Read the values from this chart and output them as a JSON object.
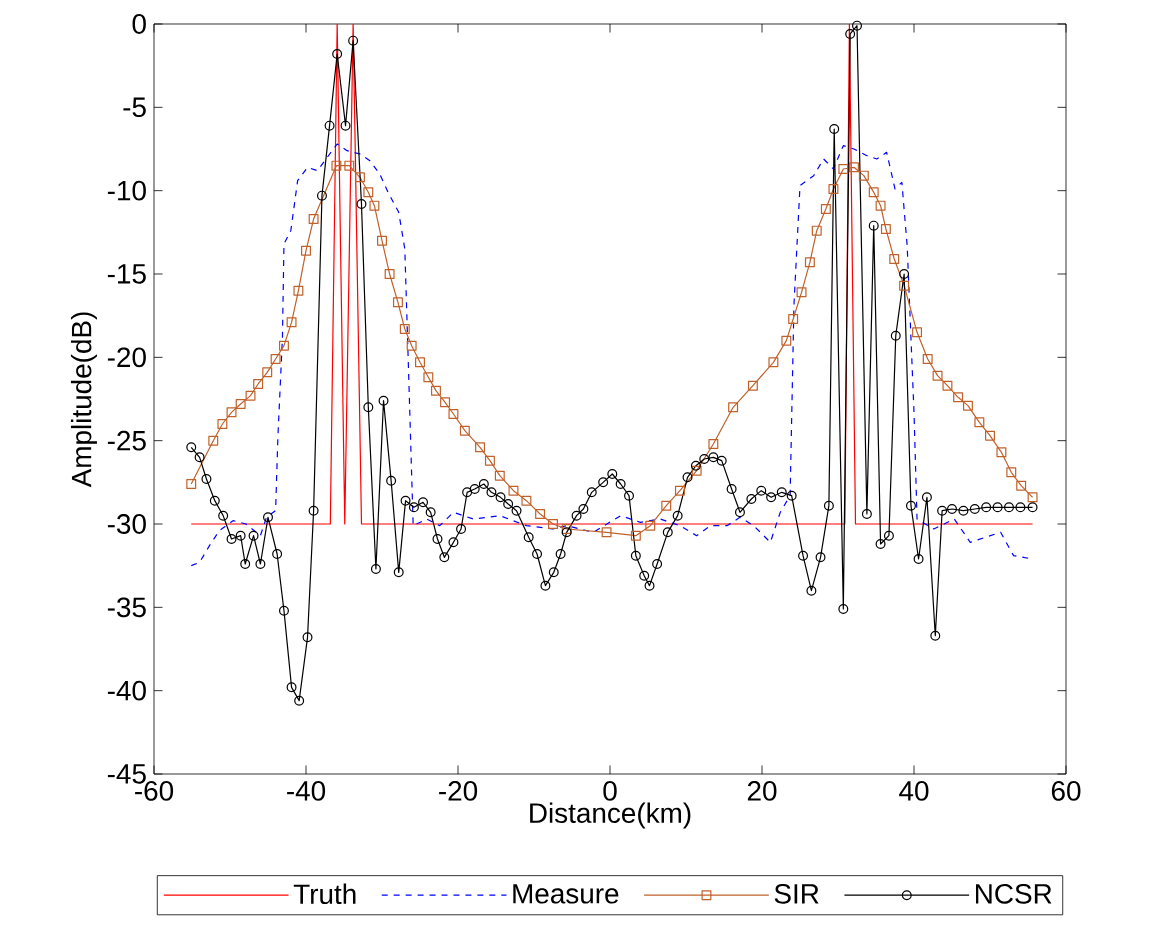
{
  "chart_data": {
    "type": "line",
    "xlabel": "Distance(km)",
    "ylabel": "Amplitude(dB)",
    "xlim": [
      -60,
      60
    ],
    "ylim": [
      -45,
      0
    ],
    "xticks": [
      -60,
      -40,
      -20,
      0,
      20,
      40,
      60
    ],
    "yticks": [
      -45,
      -40,
      -35,
      -30,
      -25,
      -20,
      -15,
      -10,
      -5,
      0
    ],
    "grid": false,
    "legend": "bottom",
    "series": [
      {
        "name": "Truth",
        "color": "#ff0000",
        "marker": "none",
        "line_style": "solid",
        "x": [
          -55.1,
          -36.8,
          -35.9,
          -34.9,
          -33.8,
          -32.7,
          30.9,
          31.5,
          32.3,
          55.6
        ],
        "values": [
          -30,
          -30,
          0,
          -30,
          0,
          -30,
          -30,
          0,
          -30,
          -30
        ]
      },
      {
        "name": "Measure",
        "color": "#0000ff",
        "marker": "none",
        "line_style": "dashed",
        "x": [
          -55.1,
          -54,
          -52.7,
          -51.4,
          -49.6,
          -47.9,
          -46,
          -45.2,
          -44,
          -43.7,
          -43.1,
          -42.9,
          -42,
          -41.1,
          -39.8,
          -38.5,
          -37.2,
          -35.9,
          -34.6,
          -32.9,
          -31.6,
          -30.3,
          -29.2,
          -27.8,
          -27,
          -26.5,
          -25.9,
          -24.1,
          -22.4,
          -20.6,
          -18,
          -14.5,
          -11,
          -7.5,
          -5.7,
          -2.2,
          1.4,
          4,
          6.6,
          9.2,
          11.4,
          13.2,
          15.4,
          17.1,
          18.9,
          21.1,
          22.4,
          23.7,
          24.2,
          25,
          26.8,
          28.1,
          29.4,
          30.7,
          32.1,
          33.8,
          35.1,
          36.4,
          37.5,
          38.4,
          39.1,
          40,
          40.4,
          42.6,
          45.3,
          47.4,
          51.4,
          53.1,
          55.6
        ],
        "values": [
          -32.5,
          -32.3,
          -31.3,
          -30.4,
          -29.8,
          -30,
          -30.7,
          -29.6,
          -29.2,
          -24.8,
          -18.8,
          -13.2,
          -12.4,
          -9.4,
          -8.6,
          -8.8,
          -8,
          -7.2,
          -7.6,
          -7.8,
          -8.2,
          -9,
          -10.1,
          -11.3,
          -13.5,
          -20.9,
          -30.1,
          -29.7,
          -30.1,
          -29.3,
          -29.7,
          -29.5,
          -30.1,
          -30.3,
          -30.1,
          -30.5,
          -29.5,
          -29.9,
          -29.7,
          -30.1,
          -30.7,
          -30.1,
          -30.1,
          -29.6,
          -30.1,
          -31.1,
          -29.3,
          -28.3,
          -16.9,
          -9.7,
          -9.1,
          -8.1,
          -8.7,
          -7.3,
          -7.5,
          -7.9,
          -8.1,
          -7.7,
          -9.9,
          -9.5,
          -13.3,
          -23.3,
          -29.7,
          -30.3,
          -29.7,
          -31.1,
          -30.5,
          -31.9,
          -32.1
        ]
      },
      {
        "name": "SIR",
        "color": "#c0612b",
        "marker": "square",
        "line_style": "solid",
        "x": [
          -55.1,
          -52.2,
          -51,
          -49.8,
          -48.6,
          -47.3,
          -46.3,
          -45.1,
          -44,
          -42.9,
          -41.9,
          -41,
          -40,
          -39,
          -36,
          -34.3,
          -32.9,
          -31.8,
          -31,
          -30,
          -29,
          -27.9,
          -27,
          -26.1,
          -25,
          -23.9,
          -22.9,
          -21.7,
          -20.6,
          -19.1,
          -17.1,
          -15.8,
          -14.5,
          -12.7,
          -11,
          -9.2,
          -7.5,
          -5.7,
          -0.45,
          3.4,
          5.3,
          7.4,
          9.2,
          11.4,
          13.6,
          16.2,
          18.8,
          21.5,
          23.2,
          24.1,
          25.2,
          26.3,
          27.2,
          28.4,
          29.4,
          30.7,
          32.1,
          33.4,
          34.7,
          35.6,
          36.3,
          37.4,
          38.7,
          40.4,
          41.8,
          43.1,
          44.4,
          45.8,
          47.1,
          48.6,
          50,
          51.5,
          52.8,
          54.1,
          55.6
        ],
        "values": [
          -27.6,
          -25,
          -24,
          -23.3,
          -22.8,
          -22.3,
          -21.6,
          -20.9,
          -20.1,
          -19.3,
          -17.9,
          -16,
          -13.6,
          -11.7,
          -8.5,
          -8.5,
          -9.2,
          -10.1,
          -10.9,
          -13,
          -15,
          -16.7,
          -18.3,
          -19.3,
          -20.3,
          -21.2,
          -22,
          -22.7,
          -23.4,
          -24.4,
          -25.4,
          -26.2,
          -27.1,
          -28,
          -28.6,
          -29.4,
          -30,
          -30.3,
          -30.5,
          -30.7,
          -30.1,
          -28.9,
          -28,
          -26.8,
          -25.2,
          -23,
          -21.7,
          -20.3,
          -19,
          -17.7,
          -16.1,
          -14.3,
          -12.4,
          -11.1,
          -9.9,
          -8.7,
          -8.6,
          -9.1,
          -10.1,
          -10.9,
          -12.3,
          -14.1,
          -15.7,
          -18.5,
          -20.1,
          -21.1,
          -21.7,
          -22.4,
          -22.9,
          -23.9,
          -24.7,
          -25.7,
          -26.9,
          -27.7,
          -28.4
        ]
      },
      {
        "name": "NCSR",
        "color": "#000000",
        "marker": "circle",
        "line_style": "solid",
        "x": [
          -55.1,
          -54,
          -53.1,
          -52,
          -50.9,
          -49.8,
          -48.6,
          -48,
          -46.9,
          -46,
          -45,
          -43.8,
          -42.9,
          -41.9,
          -40.9,
          -39.8,
          -39,
          -37.9,
          -36.9,
          -35.9,
          -34.8,
          -33.8,
          -32.7,
          -31.8,
          -30.8,
          -29.8,
          -28.8,
          -27.8,
          -26.9,
          -25.8,
          -24.6,
          -23.6,
          -22.7,
          -21.8,
          -20.6,
          -19.6,
          -18.8,
          -17.8,
          -16.6,
          -15.6,
          -14.4,
          -13.4,
          -12.3,
          -10.7,
          -9.6,
          -8.5,
          -7.4,
          -6.5,
          -5.7,
          -4.4,
          -3.5,
          -2.4,
          -0.9,
          0.3,
          1.4,
          2.5,
          3.4,
          4.5,
          5.2,
          6.2,
          7.6,
          8.9,
          10.2,
          11.3,
          12.4,
          13.6,
          14.7,
          16,
          17.1,
          18.6,
          19.9,
          21.2,
          22.6,
          23.9,
          25.4,
          26.5,
          27.7,
          28.8,
          29.5,
          30.7,
          31.6,
          32.5,
          33.8,
          34.7,
          35.6,
          36.7,
          37.6,
          38.7,
          39.6,
          40.6,
          41.7,
          42.8,
          43.7,
          45,
          46.5,
          48,
          49.5,
          51,
          52.5,
          54,
          55.6
        ],
        "values": [
          -25.4,
          -26,
          -27.3,
          -28.6,
          -29.5,
          -30.9,
          -30.7,
          -32.4,
          -30.7,
          -32.4,
          -29.6,
          -31.8,
          -35.2,
          -39.8,
          -40.6,
          -36.8,
          -29.2,
          -10.3,
          -6.1,
          -1.8,
          -6.1,
          -1,
          -10.8,
          -23,
          -32.7,
          -22.6,
          -27.4,
          -32.9,
          -28.6,
          -29,
          -28.7,
          -29.3,
          -30.9,
          -32,
          -31.1,
          -30.3,
          -28.1,
          -27.9,
          -27.6,
          -28.1,
          -28.4,
          -28.8,
          -29.2,
          -30.8,
          -31.8,
          -33.7,
          -32.9,
          -31.8,
          -30.5,
          -29.5,
          -29.1,
          -28.1,
          -27.5,
          -27,
          -27.6,
          -28.3,
          -31.9,
          -33.1,
          -33.7,
          -32.4,
          -30.5,
          -29.5,
          -27.2,
          -26.5,
          -26.1,
          -26,
          -26.2,
          -27.9,
          -29.3,
          -28.5,
          -28,
          -28.4,
          -28.1,
          -28.3,
          -31.9,
          -34,
          -32,
          -28.9,
          -6.3,
          -35.1,
          -0.6,
          -0.1,
          -29.4,
          -12.1,
          -31.2,
          -30.7,
          -18.7,
          -15,
          -28.9,
          -32.1,
          -28.4,
          -36.7,
          -29.2,
          -29.1,
          -29.2,
          -29.1,
          -29,
          -29,
          -29,
          -29,
          -29
        ]
      }
    ]
  }
}
